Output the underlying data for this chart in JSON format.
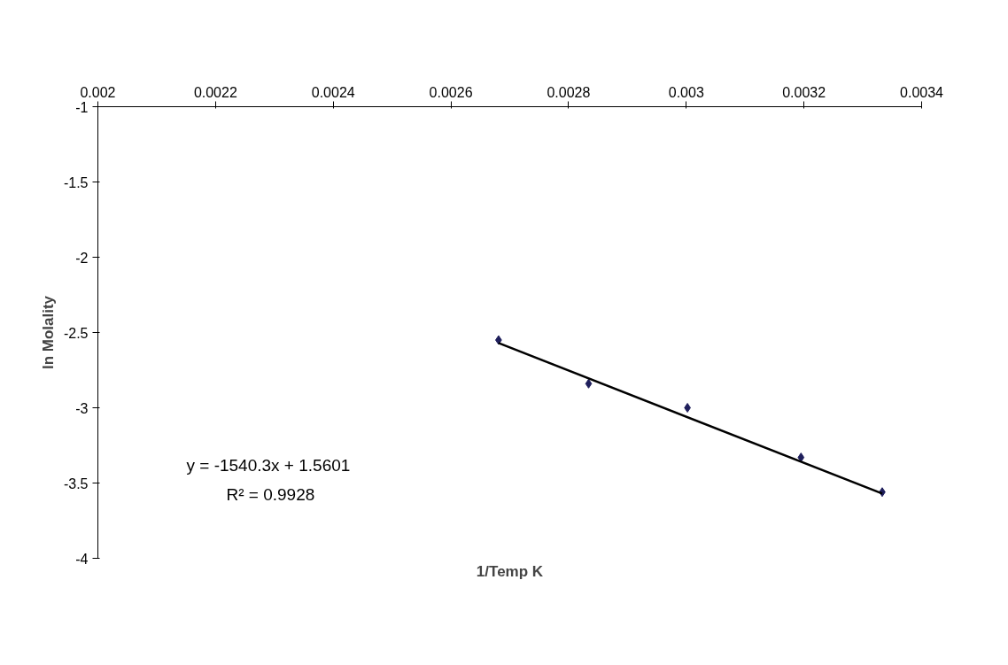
{
  "chart_data": {
    "type": "scatter",
    "xlabel": "1/Temp K",
    "ylabel": "ln Molality",
    "x": [
      0.002681,
      0.002834,
      0.003002,
      0.003195,
      0.003333
    ],
    "series": [
      {
        "color": "#1f1f5c",
        "marker": "diamond",
        "values": [
          -2.55,
          -2.84,
          -3.0,
          -3.33,
          -3.56
        ]
      },
      {
        "type": "line",
        "color": "#000000",
        "marker": "none",
        "x": [
          0.002681,
          0.003333
        ],
        "values": [
          -2.57,
          -3.57
        ]
      }
    ],
    "xlim": [
      0.002,
      0.0034
    ],
    "xticks": [
      0.002,
      0.0022,
      0.0024,
      0.0026,
      0.0028,
      0.003,
      0.0032,
      0.0034
    ],
    "ylim": [
      -4,
      -1
    ],
    "yticks": [
      -1,
      -1.5,
      -2,
      -2.5,
      -3,
      -3.5,
      -4
    ],
    "grid": false,
    "annotations": [
      "y = -1540.3x + 1.5601",
      "R² = 0.9928"
    ]
  }
}
